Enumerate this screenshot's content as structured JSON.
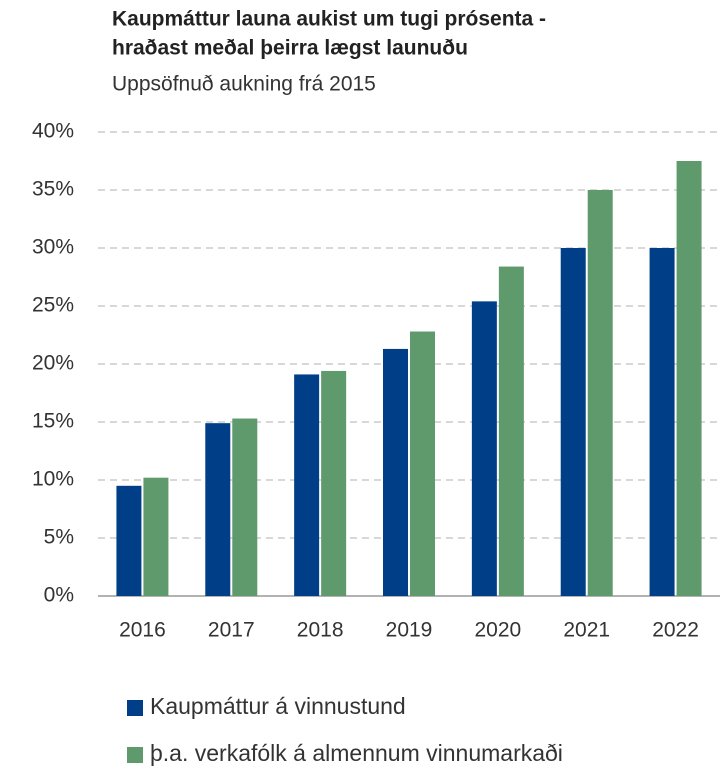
{
  "chart_data": {
    "type": "bar",
    "title": [
      "Kaupmáttur launa aukist um tugi prósenta -",
      "hraðast meðal þeirra lægst launuðu"
    ],
    "subtitle": "Uppsöfnuð aukning frá 2015",
    "categories": [
      "2016",
      "2017",
      "2018",
      "2019",
      "2020",
      "2021",
      "2022"
    ],
    "series": [
      {
        "name": "Kaupmáttur á vinnustund",
        "color": "#003f87",
        "values": [
          9.5,
          14.9,
          19.1,
          21.3,
          25.4,
          30.0,
          30.0
        ]
      },
      {
        "name": "þ.a. verkafólk á almennum vinnumarkaði",
        "color": "#5f9a6c",
        "values": [
          10.2,
          15.3,
          19.4,
          22.8,
          28.4,
          35.0,
          37.5
        ]
      }
    ],
    "ylim": [
      0,
      40
    ],
    "yticks": [
      {
        "value": 0,
        "label": "0%"
      },
      {
        "value": 5,
        "label": "5%"
      },
      {
        "value": 10,
        "label": "10%"
      },
      {
        "value": 15,
        "label": "15%"
      },
      {
        "value": 20,
        "label": "20%"
      },
      {
        "value": 25,
        "label": "25%"
      },
      {
        "value": 30,
        "label": "30%"
      },
      {
        "value": 35,
        "label": "35%"
      },
      {
        "value": 40,
        "label": "40%"
      }
    ],
    "grid": true,
    "legend": "bottom"
  }
}
